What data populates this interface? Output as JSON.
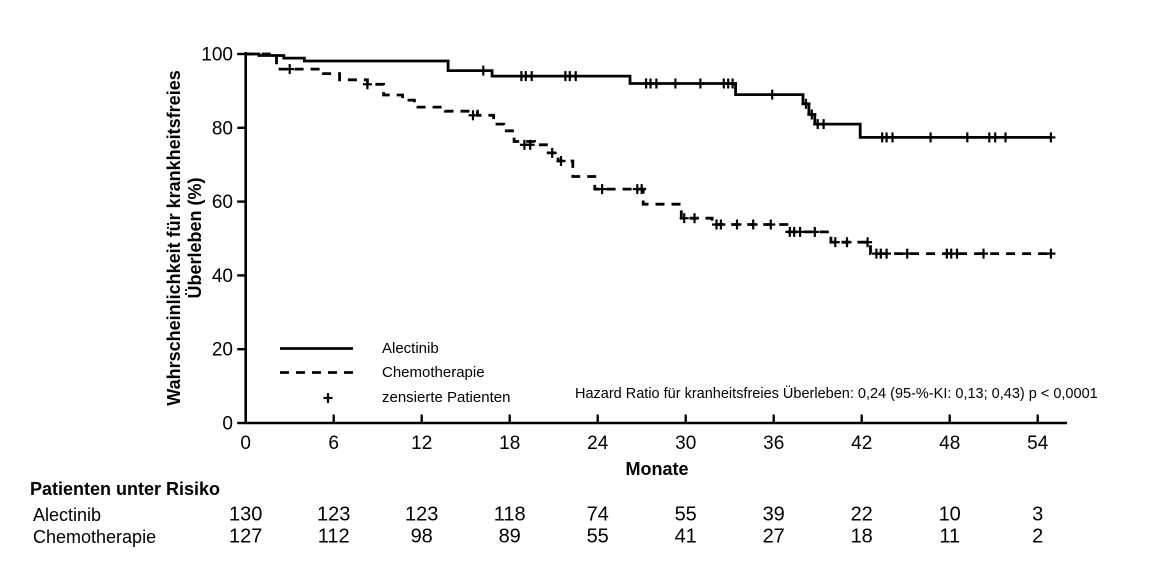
{
  "figure": {
    "background": "#ffffff",
    "ink": "#000000"
  },
  "chart_data": {
    "type": "line",
    "subtype": "kaplan-meier-step",
    "xlabel": "Monate",
    "ylabel_line1": "Wahrscheinlichkeit für krankheitsfreies",
    "ylabel_line2": "Überleben (%)",
    "xlim": [
      0,
      56
    ],
    "ylim": [
      0,
      100
    ],
    "x_ticks": [
      0,
      6,
      12,
      18,
      24,
      30,
      36,
      42,
      48,
      54
    ],
    "y_ticks": [
      0,
      20,
      40,
      60,
      80,
      100
    ],
    "grid": false,
    "legend_position": "inside-lower-left",
    "annotation": "Hazard Ratio für kranheitsfreies Überleben: 0,24 (95-%-KI: 0,13; 0,43) p < 0,0001",
    "series": [
      {
        "name": "Alectinib",
        "style": "solid",
        "steps": [
          [
            0,
            100
          ],
          [
            0.9,
            99.6
          ],
          [
            2.6,
            98.9
          ],
          [
            4.0,
            98.1
          ],
          [
            13.8,
            95.5
          ],
          [
            16.8,
            94.0
          ],
          [
            26.2,
            92.0
          ],
          [
            33.4,
            89.0
          ],
          [
            38.0,
            86.5
          ],
          [
            38.4,
            83.6
          ],
          [
            38.8,
            81.0
          ],
          [
            41.9,
            77.4
          ],
          [
            54.9,
            77.4
          ]
        ],
        "censors": [
          [
            16.2,
            95.5
          ],
          [
            18.8,
            94.0
          ],
          [
            19.1,
            94.0
          ],
          [
            19.5,
            94.0
          ],
          [
            21.8,
            94.0
          ],
          [
            22.1,
            94.0
          ],
          [
            22.5,
            94.0
          ],
          [
            27.3,
            92.0
          ],
          [
            27.6,
            92.0
          ],
          [
            28.0,
            92.0
          ],
          [
            29.3,
            92.0
          ],
          [
            31.0,
            92.0
          ],
          [
            32.6,
            92.0
          ],
          [
            32.9,
            92.0
          ],
          [
            33.2,
            92.0
          ],
          [
            35.9,
            89.0
          ],
          [
            38.2,
            86.5
          ],
          [
            38.6,
            83.6
          ],
          [
            39.0,
            81.0
          ],
          [
            39.4,
            81.0
          ],
          [
            43.4,
            77.4
          ],
          [
            43.7,
            77.4
          ],
          [
            44.1,
            77.4
          ],
          [
            46.7,
            77.4
          ],
          [
            49.2,
            77.4
          ],
          [
            50.7,
            77.4
          ],
          [
            51.1,
            77.4
          ],
          [
            51.8,
            77.4
          ],
          [
            54.9,
            77.4
          ]
        ]
      },
      {
        "name": "Chemotherapie",
        "style": "dashed",
        "steps": [
          [
            0,
            100
          ],
          [
            2.1,
            95.9
          ],
          [
            5.1,
            94.7
          ],
          [
            6.4,
            93.0
          ],
          [
            8.3,
            91.8
          ],
          [
            9.4,
            88.9
          ],
          [
            10.7,
            87.5
          ],
          [
            11.5,
            85.6
          ],
          [
            13.6,
            84.5
          ],
          [
            15.8,
            83.4
          ],
          [
            16.9,
            81.0
          ],
          [
            17.6,
            79.2
          ],
          [
            18.3,
            76.3
          ],
          [
            19.7,
            75.4
          ],
          [
            20.5,
            73.2
          ],
          [
            21.3,
            71.0
          ],
          [
            22.3,
            66.8
          ],
          [
            23.8,
            63.4
          ],
          [
            27.1,
            59.3
          ],
          [
            29.7,
            55.5
          ],
          [
            31.8,
            53.8
          ],
          [
            36.9,
            51.8
          ],
          [
            39.9,
            49.0
          ],
          [
            42.6,
            45.9
          ],
          [
            54.9,
            45.9
          ]
        ],
        "censors": [
          [
            3.0,
            95.9
          ],
          [
            8.3,
            91.8
          ],
          [
            15.5,
            83.4
          ],
          [
            19.0,
            75.4
          ],
          [
            19.4,
            75.4
          ],
          [
            20.9,
            73.2
          ],
          [
            21.5,
            71.0
          ],
          [
            24.3,
            63.4
          ],
          [
            26.7,
            63.4
          ],
          [
            27.0,
            63.4
          ],
          [
            29.9,
            55.5
          ],
          [
            30.6,
            55.5
          ],
          [
            32.1,
            53.8
          ],
          [
            32.4,
            53.8
          ],
          [
            33.5,
            53.8
          ],
          [
            34.6,
            53.8
          ],
          [
            35.8,
            53.8
          ],
          [
            37.1,
            51.8
          ],
          [
            37.4,
            51.8
          ],
          [
            37.8,
            51.8
          ],
          [
            38.8,
            51.8
          ],
          [
            40.2,
            49.0
          ],
          [
            41.0,
            49.0
          ],
          [
            42.4,
            49.0
          ],
          [
            43.0,
            45.9
          ],
          [
            43.3,
            45.9
          ],
          [
            43.7,
            45.9
          ],
          [
            45.1,
            45.9
          ],
          [
            47.8,
            45.9
          ],
          [
            48.1,
            45.9
          ],
          [
            48.5,
            45.9
          ],
          [
            50.3,
            45.9
          ],
          [
            54.9,
            45.9
          ]
        ]
      }
    ],
    "legend": {
      "items": [
        {
          "label": "Alectinib",
          "marker": "solid-line"
        },
        {
          "label": "Chemotherapie",
          "marker": "dashed-line"
        },
        {
          "label": "zensierte Patienten",
          "marker": "plus"
        }
      ]
    },
    "risk_table": {
      "title": "Patienten unter Risiko",
      "time_points": [
        0,
        6,
        12,
        18,
        24,
        30,
        36,
        42,
        48,
        54
      ],
      "rows": [
        {
          "label": "Alectinib",
          "counts": [
            130,
            123,
            123,
            118,
            74,
            55,
            39,
            22,
            10,
            3
          ]
        },
        {
          "label": "Chemotherapie",
          "counts": [
            127,
            112,
            98,
            89,
            55,
            41,
            27,
            18,
            11,
            2
          ]
        }
      ]
    }
  }
}
